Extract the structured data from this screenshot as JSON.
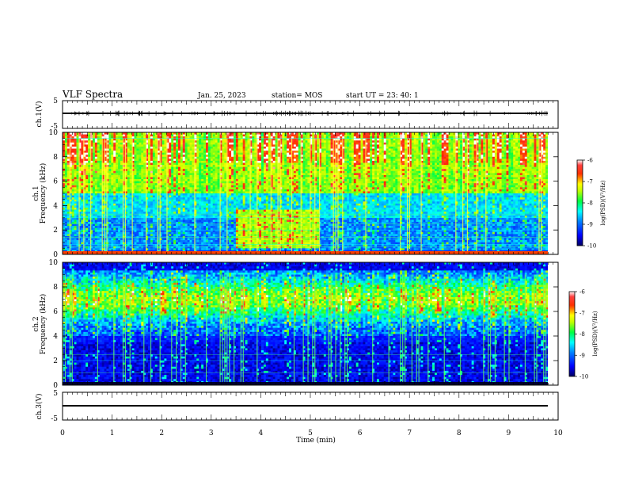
{
  "header": {
    "title": "VLF Spectra",
    "date": "Jan. 25, 2023",
    "station": "station= MOS",
    "start": "start  UT  =   23: 40: 1"
  },
  "chart_data": [
    {
      "type": "line",
      "panel": "ch1-waveform",
      "ylabel": "ch.1(V)",
      "yticks": [
        "5",
        "-5"
      ],
      "ylim": [
        -5,
        5
      ],
      "value": 0
    },
    {
      "type": "heatmap",
      "panel": "ch1-spectrogram",
      "ylabel": [
        "ch.1",
        "Frequency (kHz)"
      ],
      "ylim": [
        0,
        10
      ],
      "yticks": [
        "0",
        "2",
        "4",
        "6",
        "8",
        "10"
      ],
      "xlim": [
        0,
        9.85
      ],
      "colorbar": {
        "label": "log(PSD)(V²/Hz)",
        "ticks": [
          "-6",
          "-7",
          "-8",
          "-9",
          "-10"
        ],
        "range": [
          -10,
          -6
        ]
      }
    },
    {
      "type": "heatmap",
      "panel": "ch2-spectrogram",
      "ylabel": [
        "ch.2",
        "Frequency (kHz)"
      ],
      "ylim": [
        0,
        10
      ],
      "yticks": [
        "0",
        "2",
        "4",
        "6",
        "8",
        "10"
      ],
      "xlim": [
        0,
        9.85
      ],
      "colorbar": {
        "label": "log(PSD)(V²/Hz)",
        "ticks": [
          "-6",
          "-7",
          "-8",
          "-9",
          "-10"
        ],
        "range": [
          -10,
          -6
        ]
      }
    },
    {
      "type": "line",
      "panel": "ch3-waveform",
      "ylabel": "ch.3(V)",
      "yticks": [
        "5",
        "-5"
      ],
      "ylim": [
        -5,
        5
      ],
      "value": 0
    }
  ],
  "xaxis": {
    "label": "Time  (min)",
    "ticks": [
      "0",
      "1",
      "2",
      "3",
      "4",
      "5",
      "6",
      "7",
      "8",
      "9",
      "10"
    ],
    "range": [
      0,
      10
    ]
  },
  "colors": {
    "scale": [
      "#000080",
      "#0000ff",
      "#0080ff",
      "#00ffff",
      "#00ff80",
      "#80ff00",
      "#ffff00",
      "#ff8000",
      "#ff0000",
      "#ffffff"
    ]
  }
}
